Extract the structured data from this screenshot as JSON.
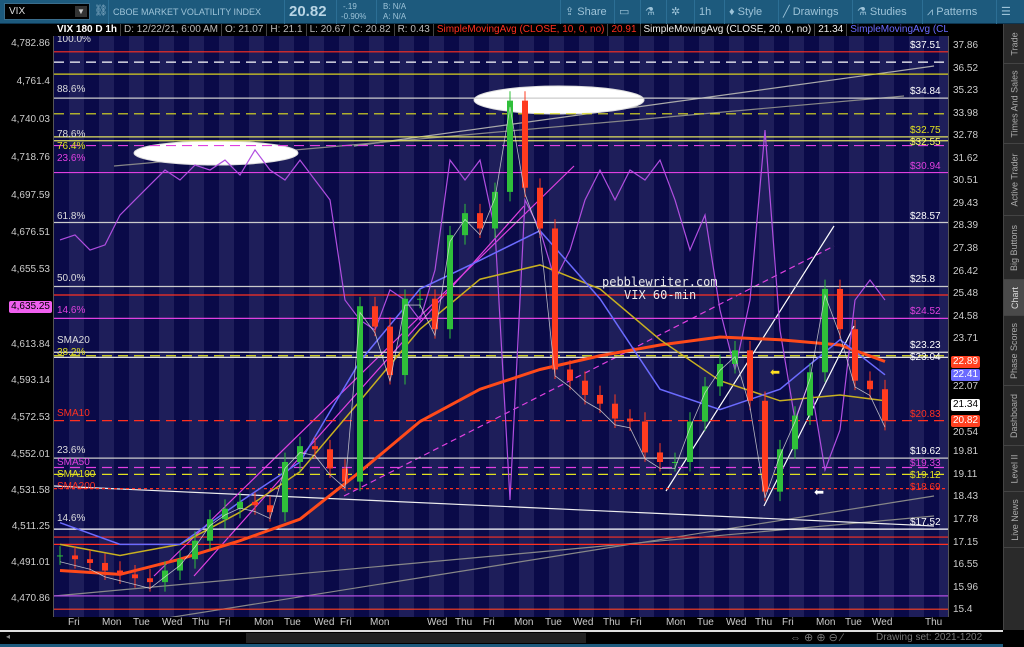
{
  "header": {
    "symbol": "VIX",
    "description": "CBOE MARKET VOLATILITY INDEX",
    "last": "20.82",
    "change": "-.19",
    "change_pct": "-0.90%",
    "bid": "B: N/A",
    "ask": "A: N/A",
    "buttons": [
      {
        "label": "Share",
        "icon": "share-icon"
      },
      {
        "label": "",
        "icon": "alert-icon"
      },
      {
        "label": "",
        "icon": "flask-icon"
      },
      {
        "label": "",
        "icon": "gear-icon"
      },
      {
        "label": "1h",
        "icon": ""
      },
      {
        "label": "Style",
        "icon": "candle-style-icon"
      },
      {
        "label": "Drawings",
        "icon": "pencil-line-icon"
      },
      {
        "label": "Studies",
        "icon": "flask-icon"
      },
      {
        "label": "Patterns",
        "icon": "pattern-icon"
      },
      {
        "label": "",
        "icon": "menu-list-icon"
      }
    ]
  },
  "info_bar": [
    "VIX 180 D 1h",
    "D: 12/22/21, 6:00 AM",
    "O: 21.07",
    "H: 21.1",
    "L: 20.67",
    "C: 20.82",
    "R: 0.43",
    "SimpleMovingAvg (CLOSE, 10, 0, no)",
    "20.91",
    "SimpleMovingAvg (CLOSE, 20, 0, no)",
    "21.34",
    "SimpleMovingAvg (CLOSE,..."
  ],
  "colors": {
    "up": "#2fbf3a",
    "down": "#ff3b1f",
    "sma10": "#ff3020",
    "sma20": "#e0e0e0",
    "sma50": "#6b6bff",
    "sma100": "#c8b020",
    "sma200": "#ff4a1a",
    "spx": "#b04ee0",
    "bg_stripe_a": "#0a0a48",
    "bg_stripe_b": "#1e1e5a"
  },
  "left_axis": {
    "ticks": [
      "4,782.86",
      "4,761.4",
      "4,740.03",
      "4,718.76",
      "4,697.59",
      "4,676.51",
      "4,655.53",
      "4,613.84",
      "4,593.14",
      "4,572.53",
      "4,552.01",
      "4,531.58",
      "4,511.25",
      "4,491.01",
      "4,470.86"
    ],
    "bubble": "4,635.25"
  },
  "right_axis": {
    "ticks": [
      "37.86",
      "36.52",
      "35.23",
      "33.98",
      "32.78",
      "31.62",
      "30.51",
      "29.43",
      "28.39",
      "27.38",
      "26.42",
      "25.48",
      "24.58",
      "23.71",
      "22.07",
      "20.54",
      "19.81",
      "19.11",
      "18.43",
      "17.78",
      "17.15",
      "16.55",
      "15.96",
      "15.4"
    ],
    "bubbles": [
      {
        "value": "22.89",
        "color": "#ff4020"
      },
      {
        "value": "22.41",
        "color": "#6b6bff"
      },
      {
        "value": "21.34",
        "color": "#ffffff"
      },
      {
        "value": "20.82",
        "color": "#ff4020"
      }
    ],
    "scale": "log"
  },
  "levels": [
    {
      "value": 37.51,
      "label": "$37.51",
      "color": "#ff3020",
      "label_color": "#ffffff",
      "style": "solid"
    },
    {
      "value": 36.9,
      "label": "",
      "color": "#ffffff",
      "style": "dashed"
    },
    {
      "value": 36.2,
      "label": "",
      "color": "#d8d020",
      "style": "solid"
    },
    {
      "value": 34.84,
      "label": "$34.84",
      "color": "#cccccc",
      "label_color": "#ffffff",
      "style": "solid"
    },
    {
      "value": 33.98,
      "label": "",
      "color": "#e0e020",
      "style": "dashed"
    },
    {
      "value": 32.75,
      "label": "$32.75",
      "color": "#e0e060",
      "label_color": "#e0e020",
      "style": "solid"
    },
    {
      "value": 32.55,
      "label": "$32.55",
      "color": "#e0e060",
      "label_color": "#ffff60",
      "style": "solid"
    },
    {
      "value": 32.3,
      "label": "",
      "color": "#e040e0",
      "style": "dashed"
    },
    {
      "value": 30.94,
      "label": "$30.94",
      "color": "#e040e0",
      "label_color": "#e040e0",
      "style": "solid"
    },
    {
      "value": 28.57,
      "label": "$28.57",
      "color": "#cccccc",
      "label_color": "#ffffff",
      "style": "solid"
    },
    {
      "value": 25.8,
      "label": "$25.8",
      "color": "#cccccc",
      "label_color": "#ffffff",
      "style": "solid"
    },
    {
      "value": 25.45,
      "label": "",
      "color": "#ff3020",
      "style": "solid"
    },
    {
      "value": 24.52,
      "label": "$24.52",
      "color": "#e040e0",
      "label_color": "#e040e0",
      "style": "solid"
    },
    {
      "value": 23.23,
      "label": "$23.23",
      "color": "#e0e0e0",
      "label_color": "#ffffff",
      "style": "solid"
    },
    {
      "value": 23.04,
      "label": "$23.04",
      "color": "#e0e0e0",
      "label_color": "#ffffff",
      "style": "solid"
    },
    {
      "value": 23.1,
      "label": "",
      "color": "#e0e020",
      "style": "dashed"
    },
    {
      "value": 20.83,
      "label": "$20.83",
      "color": "#ff3020",
      "label_color": "#ff3020",
      "style": "dashed"
    },
    {
      "value": 19.62,
      "label": "$19.62",
      "color": "#cccccc",
      "label_color": "#ffffff",
      "style": "solid"
    },
    {
      "value": 19.33,
      "label": "$19.33",
      "color": "#e040e0",
      "label_color": "#e040e0",
      "style": "dashed"
    },
    {
      "value": 19.12,
      "label": "$19.12",
      "color": "#e0e020",
      "label_color": "#e0e020",
      "style": "dashed"
    },
    {
      "value": 18.69,
      "label": "$18.69",
      "color": "#ff3020",
      "label_color": "#ff3020",
      "style": "dotted"
    },
    {
      "value": 17.52,
      "label": "$17.52",
      "color": "#ffffff",
      "label_color": "#ffffff",
      "style": "solid"
    },
    {
      "value": 17.3,
      "label": "",
      "color": "#ff3020",
      "style": "solid"
    },
    {
      "value": 17.1,
      "label": "",
      "color": "#ff3020",
      "style": "solid"
    },
    {
      "value": 15.75,
      "label": "",
      "color": "#b04ee0",
      "style": "solid"
    },
    {
      "value": 15.42,
      "label": "",
      "color": "#ff4020",
      "style": "solid"
    }
  ],
  "left_labels": [
    {
      "value": 37.9,
      "label": "100.0%",
      "color": "#dddddd"
    },
    {
      "value": 35.0,
      "label": "88.6%",
      "color": "#dddddd"
    },
    {
      "value": 32.6,
      "label": "78.6%",
      "color": "#dddddd"
    },
    {
      "value": 32.6,
      "label": "76.4%",
      "color": "#e0e020"
    },
    {
      "value": 31.4,
      "label": "23.6%",
      "color": "#e040e0"
    },
    {
      "value": 28.6,
      "label": "61.8%",
      "color": "#dddddd"
    },
    {
      "value": 25.9,
      "label": "50.0%",
      "color": "#dddddd"
    },
    {
      "value": 24.6,
      "label": "14.6%",
      "color": "#e040e0"
    },
    {
      "value": 23.45,
      "label": "SMA20",
      "color": "#dddddd"
    },
    {
      "value": 23.2,
      "label": "38.2%",
      "color": "#e0e020"
    },
    {
      "value": 20.9,
      "label": "SMA10",
      "color": "#ff3020"
    },
    {
      "value": 19.7,
      "label": "23.6%",
      "color": "#dddddd"
    },
    {
      "value": 19.35,
      "label": "SMA50",
      "color": "#e040e0"
    },
    {
      "value": 19.1,
      "label": "SMA100",
      "color": "#e0e020"
    },
    {
      "value": 18.75,
      "label": "SMA200",
      "color": "#ff3020"
    },
    {
      "value": 17.65,
      "label": "14.6%",
      "color": "#dddddd"
    }
  ],
  "watermark": [
    "pebblewriter.com",
    "VIX 60-min"
  ],
  "chart_data": {
    "type": "candlestick",
    "y_scale": "log",
    "ylim": [
      15.4,
      37.86
    ],
    "secondary_ylim": [
      4470.86,
      4782.86
    ],
    "close": [
      16.8,
      16.7,
      16.6,
      16.4,
      16.3,
      16.2,
      16.1,
      16.4,
      16.7,
      17.2,
      17.8,
      18.1,
      18.3,
      18.2,
      18.0,
      19.5,
      20.0,
      19.9,
      19.3,
      18.9,
      25.0,
      24.2,
      22.4,
      25.3,
      25.3,
      24.1,
      28.0,
      29.0,
      28.3,
      30.0,
      34.7,
      30.2,
      28.3,
      22.6,
      22.2,
      21.7,
      21.4,
      20.9,
      20.8,
      19.8,
      19.5,
      19.5,
      20.8,
      22.0,
      22.8,
      23.3,
      21.5,
      18.6,
      19.9,
      21.0,
      22.5,
      25.7,
      24.1,
      22.2,
      21.9,
      20.82
    ],
    "spx": [
      4672.7,
      4675.5,
      4667,
      4669.9,
      4686.7,
      4695.2,
      4703.6,
      4712,
      4706.4,
      4714.8,
      4712,
      4717.6,
      4709.2,
      4723.3,
      4712,
      4706.4,
      4717.6,
      4706.4,
      4695.2,
      4638.9,
      4627.7,
      4622,
      4644.6,
      4638.9,
      4627.7,
      4655.8,
      4717.6,
      4706.4,
      4717.6,
      4678.3,
      4526.5,
      4695.2,
      4678.3,
      4650.2,
      4667,
      4695.2,
      4712,
      4695.2,
      4712,
      4706.4,
      4717.6,
      4695.2,
      4667,
      4686.7,
      4633.3,
      4599.6,
      4638.9,
      4734.5,
      4622,
      4571.5,
      4594,
      4543.4,
      4565.8,
      4638.9,
      4650.2,
      4638.9
    ],
    "sma_bar_index": [
      0,
      4,
      8,
      12,
      16,
      20,
      24,
      28,
      32,
      36,
      40,
      44,
      48,
      52,
      55
    ],
    "sma50": [
      17.7,
      17.1,
      17.1,
      18.3,
      19.5,
      22.9,
      25.7,
      26.9,
      28.2,
      25.3,
      21.9,
      21.2,
      21.9,
      23.7,
      22.41
    ],
    "sma100": [
      17.1,
      16.8,
      17.1,
      18.0,
      19.2,
      21.5,
      24.1,
      26.1,
      26.7,
      25.7,
      23.7,
      22.2,
      21.5,
      21.7,
      21.5
    ],
    "sma200": [
      16.4,
      16.3,
      16.7,
      17.2,
      17.8,
      19.2,
      20.8,
      21.9,
      22.6,
      23.1,
      23.5,
      23.8,
      23.7,
      23.5,
      22.89
    ]
  },
  "x_axis": {
    "days": [
      "Fri",
      "Mon",
      "Tue",
      "Wed",
      "Thu",
      "Fri",
      "Mon",
      "Tue",
      "Wed",
      "Fri",
      "Mon",
      "Wed",
      "Thu",
      "Fri",
      "Mon",
      "Tue",
      "Wed",
      "Thu",
      "Fri",
      "Mon",
      "Tue",
      "Wed",
      "Thu",
      "Fri",
      "Mon",
      "Tue",
      "Wed",
      "Thu"
    ]
  },
  "footer": {
    "drawing_set": "Drawing set: 2021-1202"
  },
  "side_tabs": [
    {
      "label": "Trade"
    },
    {
      "label": "Times And Sales"
    },
    {
      "label": "Active Trader"
    },
    {
      "label": "Big Buttons"
    },
    {
      "label": "Chart",
      "active": true
    },
    {
      "label": "Phase Scores"
    },
    {
      "label": "Dashboard"
    },
    {
      "label": "Level II"
    },
    {
      "label": "Live News"
    }
  ]
}
